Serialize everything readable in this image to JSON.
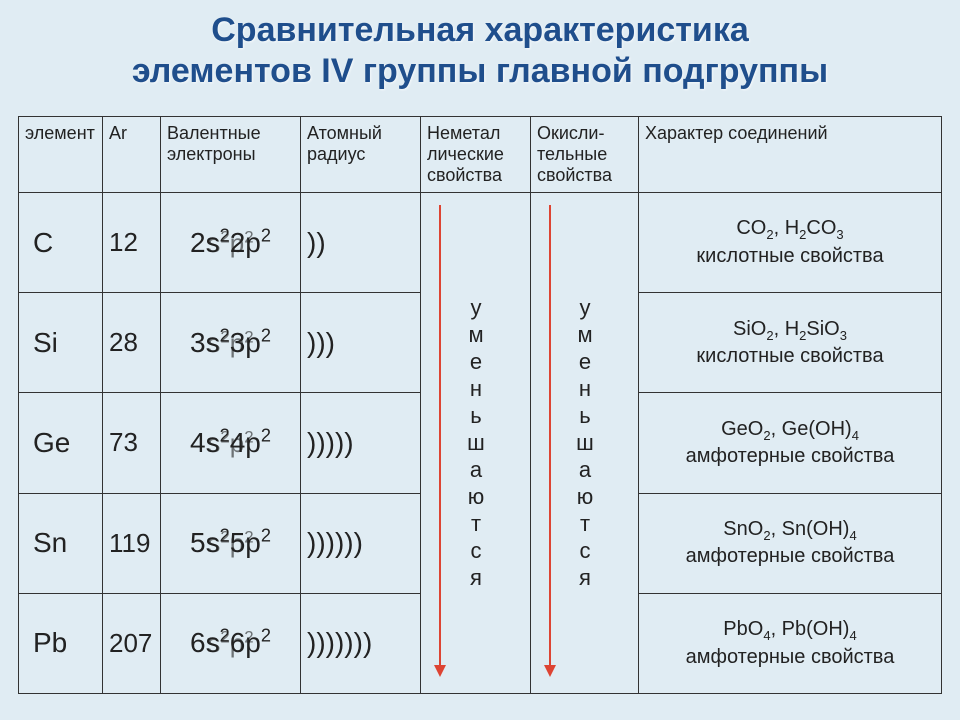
{
  "title_line1": "Сравнительная характеристика",
  "title_line2": "элементов IV группы главной подгруппы",
  "headers": {
    "element": "элемент",
    "ar": "Ar",
    "valence": "Валентные электроны",
    "radius": "Атомный радиус",
    "nonmetal": "Неметал лические свойства",
    "oxidative": "Окисли- тельные свойства",
    "compounds": "Характер соединений"
  },
  "merged_text": "уменьшаются",
  "arrow_color": "#d43",
  "rows": [
    {
      "el": "C",
      "ar": "12",
      "val_bg_html": "s<sup>2</sup>p<sup>2</sup>",
      "val_fg_html": "2s<sup>2</sup>2p<sup>2</sup>",
      "radius": "))",
      "cmpd_html": "CO<sub>2</sub>, H<sub>2</sub>CO<sub>3</sub><br>кислотные свойства"
    },
    {
      "el": "Si",
      "ar": "28",
      "val_bg_html": "s<sup>2</sup>p<sup>2</sup>",
      "val_fg_html": "3s<sup>2</sup>3p<sup>2</sup>",
      "radius": ")))",
      "cmpd_html": "SiO<sub>2</sub>, H<sub>2</sub>SiO<sub>3</sub><br>кислотные свойства"
    },
    {
      "el": "Ge",
      "ar": "73",
      "val_bg_html": "s<sup>2</sup>p<sup>2</sup>",
      "val_fg_html": "4s<sup>2</sup>4p<sup>2</sup>",
      "radius": ")))))",
      "cmpd_html": "GeO<sub>2</sub>, Ge(OH)<sub>4</sub><br>амфотерные свойства"
    },
    {
      "el": "Sn",
      "ar": "119",
      "val_bg_html": "s<sup>2</sup>p<sup>2</sup>",
      "val_fg_html": "5s<sup>2</sup>5p<sup>2</sup>",
      "radius": "))))))",
      "cmpd_html": "SnO<sub>2</sub>, Sn(OH)<sub>4</sub><br>амфотерные свойства"
    },
    {
      "el": "Pb",
      "ar": "207",
      "val_bg_html": "s<sup>2</sup>p<sup>2</sup>",
      "val_fg_html": "6s<sup>2</sup>6p<sup>2</sup>",
      "radius": ")))))))",
      "cmpd_html": "PbO<sub>4</sub>, Pb(OH)<sub>4</sub><br>амфотерные свойства"
    }
  ],
  "style": {
    "background": "#e0ecf3",
    "title_color": "#1f4e8c",
    "border_color": "#333333",
    "title_fontsize": 34,
    "body_fontsize": 21
  }
}
